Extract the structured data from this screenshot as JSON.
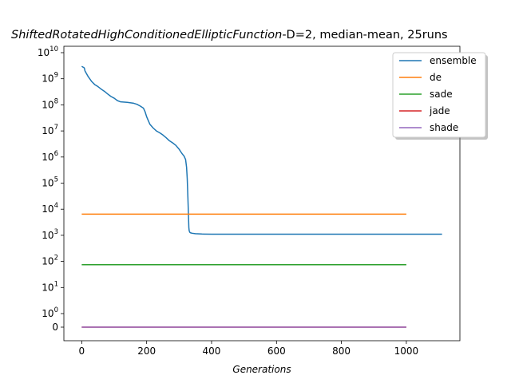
{
  "chart_data": {
    "type": "line",
    "title_italic": "ShiftedRotatedHighConditionedEllipticFunction",
    "title_rest": "-D=2, median-mean, 25runs",
    "xlabel": "Generations",
    "ylabel": "",
    "y_scale": "symlog",
    "xlim": [
      -55,
      1165
    ],
    "x_ticks": [
      0,
      200,
      400,
      600,
      800,
      1000
    ],
    "y_ticks": [
      {
        "value": 0,
        "label_base": "0",
        "label_exp": ""
      },
      {
        "value": 1,
        "label_base": "10",
        "label_exp": "0"
      },
      {
        "value": 10,
        "label_base": "10",
        "label_exp": "1"
      },
      {
        "value": 100,
        "label_base": "10",
        "label_exp": "2"
      },
      {
        "value": 1000,
        "label_base": "10",
        "label_exp": "3"
      },
      {
        "value": 10000,
        "label_base": "10",
        "label_exp": "4"
      },
      {
        "value": 100000,
        "label_base": "10",
        "label_exp": "5"
      },
      {
        "value": 1000000,
        "label_base": "10",
        "label_exp": "6"
      },
      {
        "value": 10000000,
        "label_base": "10",
        "label_exp": "7"
      },
      {
        "value": 100000000,
        "label_base": "10",
        "label_exp": "8"
      },
      {
        "value": 1000000000,
        "label_base": "10",
        "label_exp": "9"
      },
      {
        "value": 10000000000,
        "label_base": "10",
        "label_exp": "10"
      }
    ],
    "legend_position": "upper right",
    "grid": false,
    "series": [
      {
        "name": "ensemble",
        "color": "#1f77b4",
        "x": [
          0,
          8,
          10,
          20,
          30,
          40,
          50,
          60,
          70,
          80,
          90,
          100,
          110,
          120,
          140,
          160,
          170,
          180,
          190,
          195,
          200,
          205,
          210,
          220,
          230,
          240,
          250,
          260,
          270,
          280,
          290,
          300,
          305,
          310,
          315,
          320,
          323,
          325,
          327,
          329,
          330,
          331,
          332,
          333,
          335,
          340,
          350,
          370,
          400,
          450,
          500,
          600,
          700,
          800,
          900,
          1000,
          1110
        ],
        "y": [
          3000000000,
          2600000000,
          2000000000,
          1200000000,
          800000000,
          600000000,
          500000000,
          400000000,
          330000000,
          260000000,
          210000000,
          180000000,
          145000000,
          130000000,
          125000000,
          115000000,
          105000000,
          90000000,
          75000000,
          55000000,
          35000000,
          25000000,
          18000000,
          13000000,
          10000000,
          8500000,
          7000000,
          5500000,
          4200000,
          3500000,
          2800000,
          2000000,
          1600000,
          1300000,
          1100000,
          800000,
          400000,
          150000,
          30000,
          5000,
          2000,
          1500,
          1400,
          1300,
          1250,
          1200,
          1150,
          1120,
          1100,
          1100,
          1100,
          1100,
          1100,
          1100,
          1100,
          1100,
          1100
        ]
      },
      {
        "name": "de",
        "color": "#ff7f0e",
        "x": [
          0,
          1000
        ],
        "y": [
          6500,
          6500
        ]
      },
      {
        "name": "sade",
        "color": "#2ca02c",
        "x": [
          0,
          1000
        ],
        "y": [
          75,
          75
        ]
      },
      {
        "name": "jade",
        "color": "#d62728",
        "x": [
          0,
          1000
        ],
        "y": [
          0,
          0
        ]
      },
      {
        "name": "shade",
        "color": "#9467bd",
        "x": [
          0,
          1000
        ],
        "y": [
          0,
          0
        ]
      }
    ]
  }
}
